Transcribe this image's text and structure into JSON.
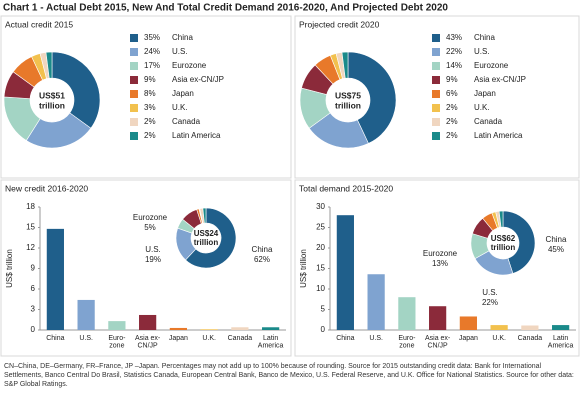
{
  "title": "Chart 1 - Actual Debt 2015, New And Total Credit Demand 2016-2020, And Projected Debt 2020",
  "chart_data": [
    {
      "type": "pie",
      "title": "Actual credit 2015",
      "center_label": [
        "US$51",
        "trillion"
      ],
      "categories": [
        "China",
        "U.S.",
        "Eurozone",
        "Asia ex-CN/JP",
        "Japan",
        "U.K.",
        "Canada",
        "Latin America"
      ],
      "values": [
        35,
        24,
        17,
        9,
        8,
        3,
        2,
        2
      ],
      "value_labels": [
        "35%",
        "24%",
        "17%",
        "9%",
        "8%",
        "3%",
        "2%",
        "2%"
      ],
      "colors": [
        "#1f5f8b",
        "#7fa3d0",
        "#a3d4c4",
        "#8b2a3a",
        "#e8792a",
        "#f2c14e",
        "#f0d6c0",
        "#1a8a8a"
      ]
    },
    {
      "type": "pie",
      "title": "Projected credit 2020",
      "center_label": [
        "US$75",
        "trillion"
      ],
      "categories": [
        "China",
        "U.S.",
        "Eurozone",
        "Asia ex-CN/JP",
        "Japan",
        "U.K.",
        "Canada",
        "Latin America"
      ],
      "values": [
        43,
        22,
        14,
        9,
        6,
        2,
        2,
        2
      ],
      "value_labels": [
        "43%",
        "22%",
        "14%",
        "9%",
        "6%",
        "2%",
        "2%",
        "2%"
      ],
      "colors": [
        "#1f5f8b",
        "#7fa3d0",
        "#a3d4c4",
        "#8b2a3a",
        "#e8792a",
        "#f2c14e",
        "#f0d6c0",
        "#1a8a8a"
      ]
    },
    {
      "type": "bar",
      "title": "New credit 2016-2020",
      "ylabel": "US$ trillion",
      "categories": [
        "China",
        "U.S.",
        "Euro-\nzone",
        "Asia ex-\nCN/JP",
        "Japan",
        "U.K.",
        "Canada",
        "Latin\nAmerica"
      ],
      "values": [
        14.8,
        4.4,
        1.3,
        2.2,
        0.3,
        0.1,
        0.4,
        0.4
      ],
      "colors": [
        "#1f5f8b",
        "#7fa3d0",
        "#a3d4c4",
        "#8b2a3a",
        "#e8792a",
        "#f2c14e",
        "#f0d6c0",
        "#1a8a8a"
      ],
      "ylim": [
        0,
        18
      ],
      "yticks": [
        0,
        3,
        6,
        9,
        12,
        15,
        18
      ],
      "inset": {
        "center_label": [
          "US$24",
          "trillion"
        ],
        "labels": [
          {
            "name": "Eurozone",
            "value": 5,
            "value_label": "5%"
          },
          {
            "name": "U.S.",
            "value": 19,
            "value_label": "19%"
          },
          {
            "name": "China",
            "value": 62,
            "value_label": "62%"
          }
        ]
      }
    },
    {
      "type": "bar",
      "title": "Total demand 2015-2020",
      "ylabel": "US$ trillion",
      "categories": [
        "China",
        "U.S.",
        "Euro-\nzone",
        "Asia ex-\nCN/JP",
        "Japan",
        "U.K.",
        "Canada",
        "Latin\nAmerica"
      ],
      "values": [
        28,
        13.6,
        8,
        5.8,
        3.3,
        1.2,
        1.1,
        1.2
      ],
      "colors": [
        "#1f5f8b",
        "#7fa3d0",
        "#a3d4c4",
        "#8b2a3a",
        "#e8792a",
        "#f2c14e",
        "#f0d6c0",
        "#1a8a8a"
      ],
      "ylim": [
        0,
        30
      ],
      "yticks": [
        0,
        5,
        10,
        15,
        20,
        25,
        30
      ],
      "inset": {
        "center_label": [
          "US$62",
          "trillion"
        ],
        "labels": [
          {
            "name": "China",
            "value": 45,
            "value_label": "45%"
          },
          {
            "name": "U.S.",
            "value": 22,
            "value_label": "22%"
          },
          {
            "name": "Eurozone",
            "value": 13,
            "value_label": "13%"
          }
        ]
      }
    }
  ],
  "footnote": "CN–China, DE–Germany, FR–France, JP –Japan. Percentages may not add up to 100% because of rounding. Source for 2015 outstanding credit data: Bank for International Settlements, Banco Central Do Brasil, Statistics Canada, European Central Bank, Banco de Mexico, U.S. Federal Reserve, and U.K. Office for National Statistics. Source for other data: S&P Global Ratings."
}
